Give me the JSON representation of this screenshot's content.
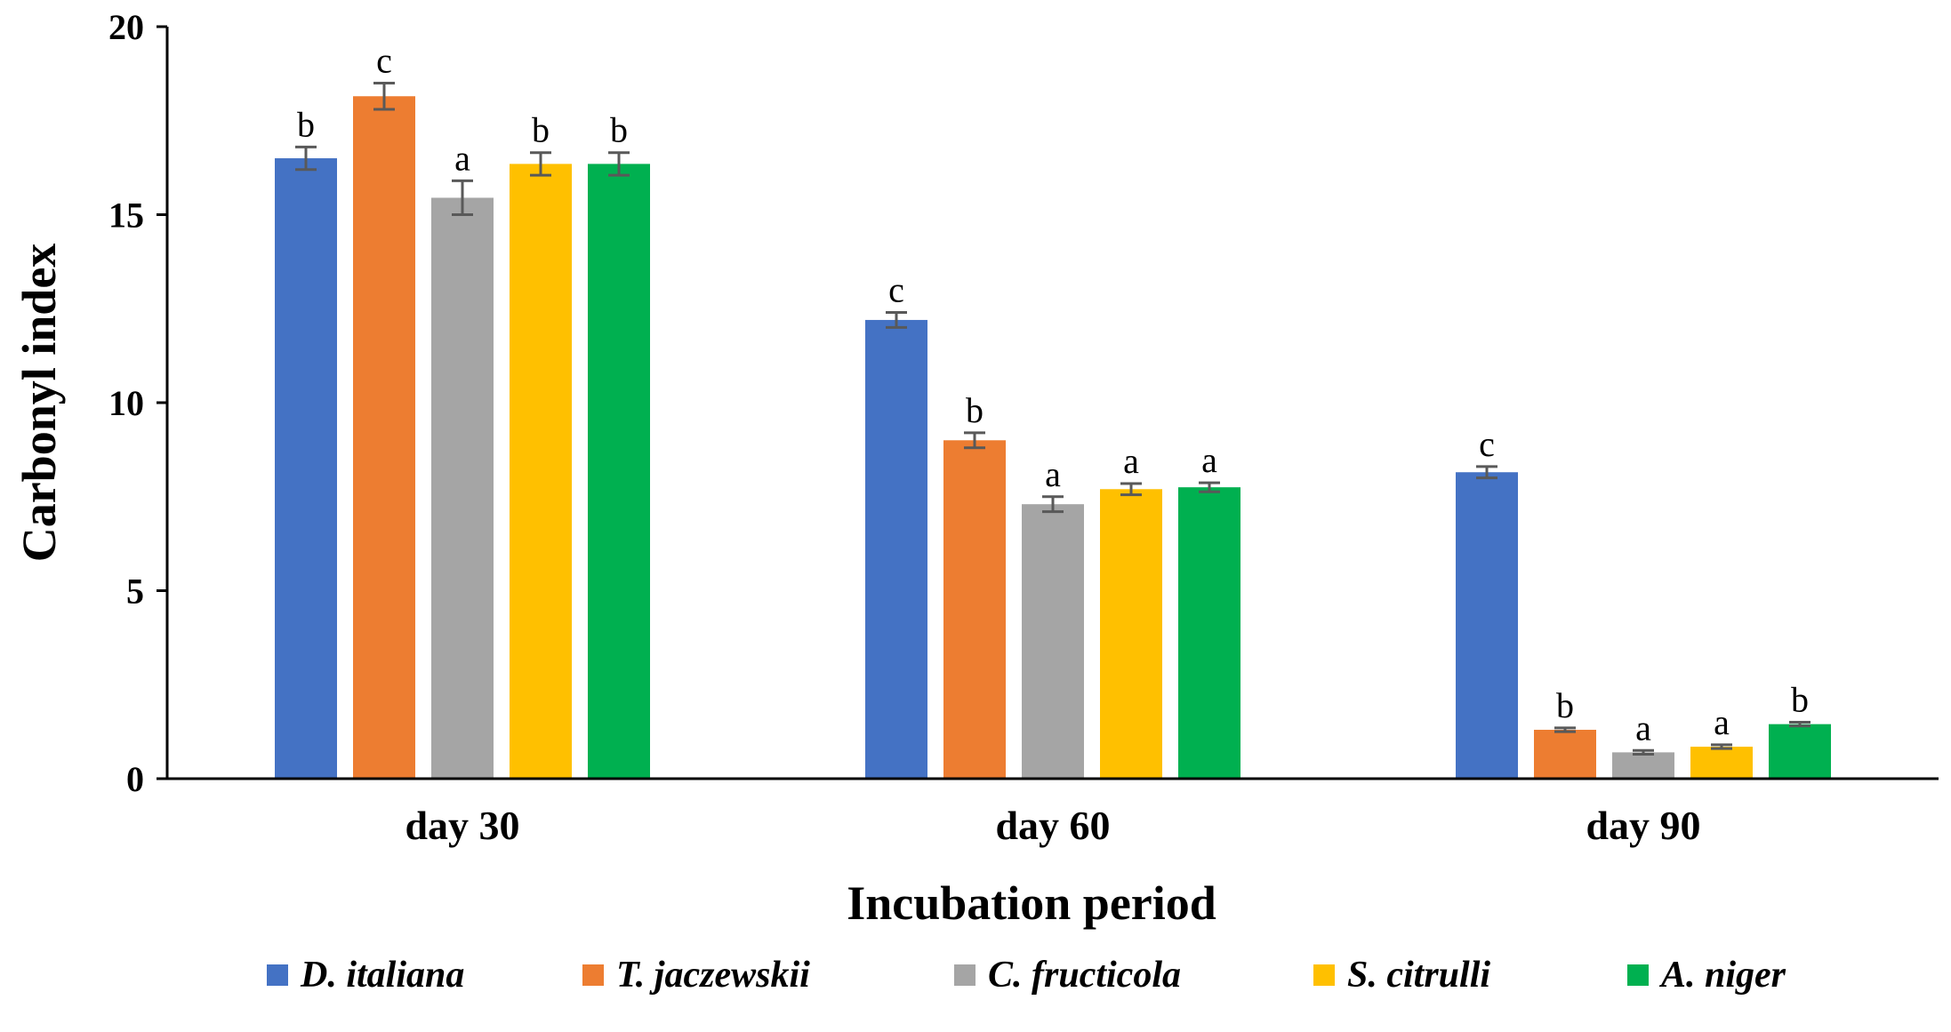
{
  "chart_data": {
    "type": "bar",
    "title": "",
    "xlabel": "Incubation period",
    "ylabel": "Carbonyl index",
    "ylim": [
      0,
      20
    ],
    "yticks": [
      0,
      5,
      10,
      15,
      20
    ],
    "grid": false,
    "legend_position": "bottom",
    "categories": [
      "day 30",
      "day 60",
      "day 90"
    ],
    "series": [
      {
        "name": "D. italiana",
        "color": "#4472C4",
        "values": [
          16.5,
          12.2,
          8.15
        ],
        "errors": [
          0.3,
          0.2,
          0.15
        ],
        "labels": [
          "b",
          "c",
          "c"
        ]
      },
      {
        "name": "T. jaczewskii",
        "color": "#ED7D31",
        "values": [
          18.15,
          9.0,
          1.3
        ],
        "errors": [
          0.35,
          0.2,
          0.05
        ],
        "labels": [
          "c",
          "b",
          "b"
        ]
      },
      {
        "name": "C. fructicola",
        "color": "#A5A5A5",
        "values": [
          15.45,
          7.3,
          0.7
        ],
        "errors": [
          0.45,
          0.2,
          0.05
        ],
        "labels": [
          "a",
          "a",
          "a"
        ]
      },
      {
        "name": "S. citrulli",
        "color": "#FFC000",
        "values": [
          16.35,
          7.7,
          0.85
        ],
        "errors": [
          0.3,
          0.15,
          0.05
        ],
        "labels": [
          "b",
          "a",
          "a"
        ]
      },
      {
        "name": "A. niger",
        "color": "#00B050",
        "values": [
          16.35,
          7.75,
          1.45
        ],
        "errors": [
          0.3,
          0.12,
          0.05
        ],
        "labels": [
          "b",
          "a",
          "b"
        ]
      }
    ]
  }
}
